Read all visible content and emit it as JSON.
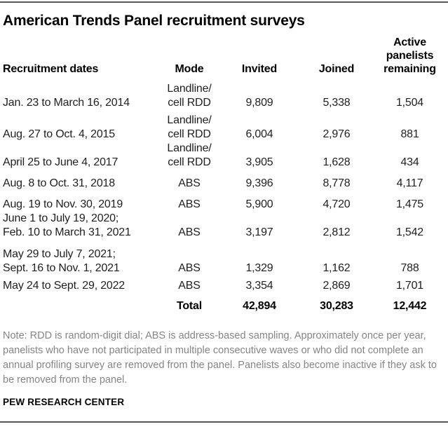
{
  "page": {
    "title": "American Trends Panel recruitment surveys",
    "note": "Note: RDD is random-digit dial; ABS is address-based sampling. Approximately once per year, panelists who have not participated in multiple consecutive waves or who did not complete an annual profiling survey are removed from the panel. Panelists also become inactive if they ask to be removed from the panel.",
    "source": "PEW RESEARCH CENTER"
  },
  "table": {
    "headers": [
      "Recruitment dates",
      "Mode",
      "Invited",
      "Joined",
      "Active panelists remaining"
    ],
    "rows": [
      {
        "dates": "Jan. 23 to March 16, 2014",
        "mode": "Landline/\ncell RDD",
        "invited": "9,809",
        "joined": "5,338",
        "active": "1,504"
      },
      {
        "dates": "Aug. 27 to Oct. 4, 2015",
        "mode": "Landline/\ncell RDD",
        "invited": "6,004",
        "joined": "2,976",
        "active": "881"
      },
      {
        "dates": "April 25 to June 4, 2017",
        "mode": "Landline/\ncell RDD",
        "invited": "3,905",
        "joined": "1,628",
        "active": "434"
      },
      {
        "dates": "Aug. 8 to Oct. 31, 2018",
        "mode": "ABS",
        "invited": "9,396",
        "joined": "8,778",
        "active": "4,117"
      },
      {
        "dates": "Aug. 19 to Nov. 30, 2019",
        "mode": "ABS",
        "invited": "5,900",
        "joined": "4,720",
        "active": "1,475"
      },
      {
        "dates": "June 1 to July 19, 2020;\nFeb. 10 to March 31, 2021",
        "mode": "ABS",
        "invited": "3,197",
        "joined": "2,812",
        "active": "1,542"
      },
      {
        "dates": "May 29 to July 7, 2021;\nSept. 16 to Nov. 1, 2021",
        "mode": "ABS",
        "invited": "1,329",
        "joined": "1,162",
        "active": "788"
      },
      {
        "dates": "May 24 to Sept. 29, 2022",
        "mode": "ABS",
        "invited": "3,354",
        "joined": "2,869",
        "active": "1,701"
      }
    ],
    "total": {
      "label": "Total",
      "invited": "42,894",
      "joined": "30,283",
      "active": "12,442"
    }
  },
  "colors": {
    "rule": "#575757",
    "body_text": "#1f1f1f",
    "heading_text": "#000000",
    "note_text": "#858585"
  },
  "chart_data": {
    "type": "table",
    "title": "American Trends Panel recruitment surveys",
    "columns": [
      "Recruitment dates",
      "Mode",
      "Invited",
      "Joined",
      "Active panelists remaining"
    ],
    "rows": [
      [
        "Jan. 23 to March 16, 2014",
        "Landline/cell RDD",
        9809,
        5338,
        1504
      ],
      [
        "Aug. 27 to Oct. 4, 2015",
        "Landline/cell RDD",
        6004,
        2976,
        881
      ],
      [
        "April 25 to June 4, 2017",
        "Landline/cell RDD",
        3905,
        1628,
        434
      ],
      [
        "Aug. 8 to Oct. 31, 2018",
        "ABS",
        9396,
        8778,
        4117
      ],
      [
        "Aug. 19 to Nov. 30, 2019",
        "ABS",
        5900,
        4720,
        1475
      ],
      [
        "June 1 to July 19, 2020; Feb. 10 to March 31, 2021",
        "ABS",
        3197,
        2812,
        1542
      ],
      [
        "May 29 to July 7, 2021; Sept. 16 to Nov. 1, 2021",
        "ABS",
        1329,
        1162,
        788
      ],
      [
        "May 24 to Sept. 29, 2022",
        "ABS",
        3354,
        2869,
        1701
      ]
    ],
    "totals": {
      "label": "Total",
      "invited": 42894,
      "joined": 30283,
      "active_panelists_remaining": 12442
    },
    "note": "Note: RDD is random-digit dial; ABS is address-based sampling. Approximately once per year, panelists who have not participated in multiple consecutive waves or who did not complete an annual profiling survey are removed from the panel. Panelists also become inactive if they ask to be removed from the panel.",
    "source": "PEW RESEARCH CENTER"
  }
}
